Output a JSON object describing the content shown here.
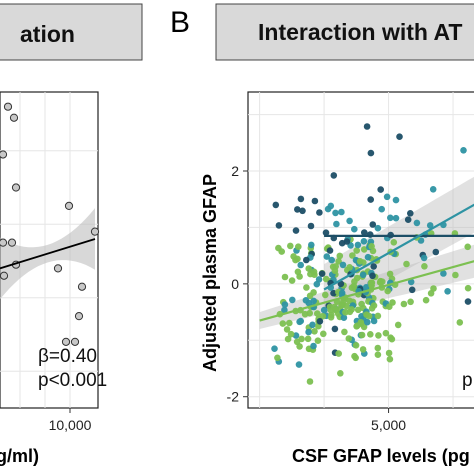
{
  "chart_data": [
    {
      "type": "scatter",
      "panel_letter": "",
      "strip_title": "ation",
      "xlabel": "g/ml)",
      "ylabel": "",
      "x_ticks": [
        "10,000"
      ],
      "x_tick_values": [
        10000
      ],
      "xlim": [
        3000,
        12800
      ],
      "ylim": [
        -1.5,
        2.8
      ],
      "grid": true,
      "point_color": "#c8c8c8",
      "annotation": [
        "β=0.40",
        "p<0.001"
      ],
      "fit": {
        "color": "#000000",
        "x": [
          3000,
          12500
        ],
        "y": [
          0.4,
          0.8
        ]
      },
      "points": [
        {
          "x": 4400,
          "y": 2.45
        },
        {
          "x": 3800,
          "y": 2.6
        },
        {
          "x": 3300,
          "y": 1.95
        },
        {
          "x": 4600,
          "y": 1.5
        },
        {
          "x": 9900,
          "y": 1.25
        },
        {
          "x": 3300,
          "y": 0.75
        },
        {
          "x": 4200,
          "y": 0.75
        },
        {
          "x": 4600,
          "y": 0.45
        },
        {
          "x": 3400,
          "y": 0.3
        },
        {
          "x": 8800,
          "y": 0.4
        },
        {
          "x": 12500,
          "y": 0.9
        },
        {
          "x": 11200,
          "y": 0.15
        },
        {
          "x": 10900,
          "y": -0.25
        },
        {
          "x": 10500,
          "y": -0.6
        },
        {
          "x": 9600,
          "y": -0.6
        }
      ]
    },
    {
      "type": "scatter",
      "panel_letter": "B",
      "strip_title": "Interaction with AT",
      "xlabel": "CSF GFAP levels (pg",
      "ylabel": "Adjusted plasma GFAP",
      "x_ticks": [
        "5,000"
      ],
      "x_tick_values": [
        5000
      ],
      "y_ticks": [
        "2",
        "0",
        "-2"
      ],
      "y_tick_values": [
        2,
        0,
        -2
      ],
      "xlim": [
        -450,
        8700
      ],
      "ylim": [
        -2.2,
        3.4
      ],
      "grid": true,
      "annotation": [
        "p"
      ],
      "series_colors": [
        "#1c4e66",
        "#2e93a3",
        "#7cc051"
      ],
      "fits": [
        {
          "color": "#1c4e66",
          "x": [
            2500,
            8700
          ],
          "y": [
            0.85,
            0.85
          ],
          "band": [
            0.0,
            0.0
          ]
        },
        {
          "color": "#2e93a3",
          "x": [
            2500,
            8700
          ],
          "y": [
            -0.1,
            1.5
          ],
          "band": [
            0.45,
            0.5
          ]
        },
        {
          "color": "#7cc051",
          "x": [
            0,
            8700
          ],
          "y": [
            -0.65,
            0.45
          ],
          "band": [
            0.15,
            0.3
          ]
        }
      ]
    }
  ]
}
